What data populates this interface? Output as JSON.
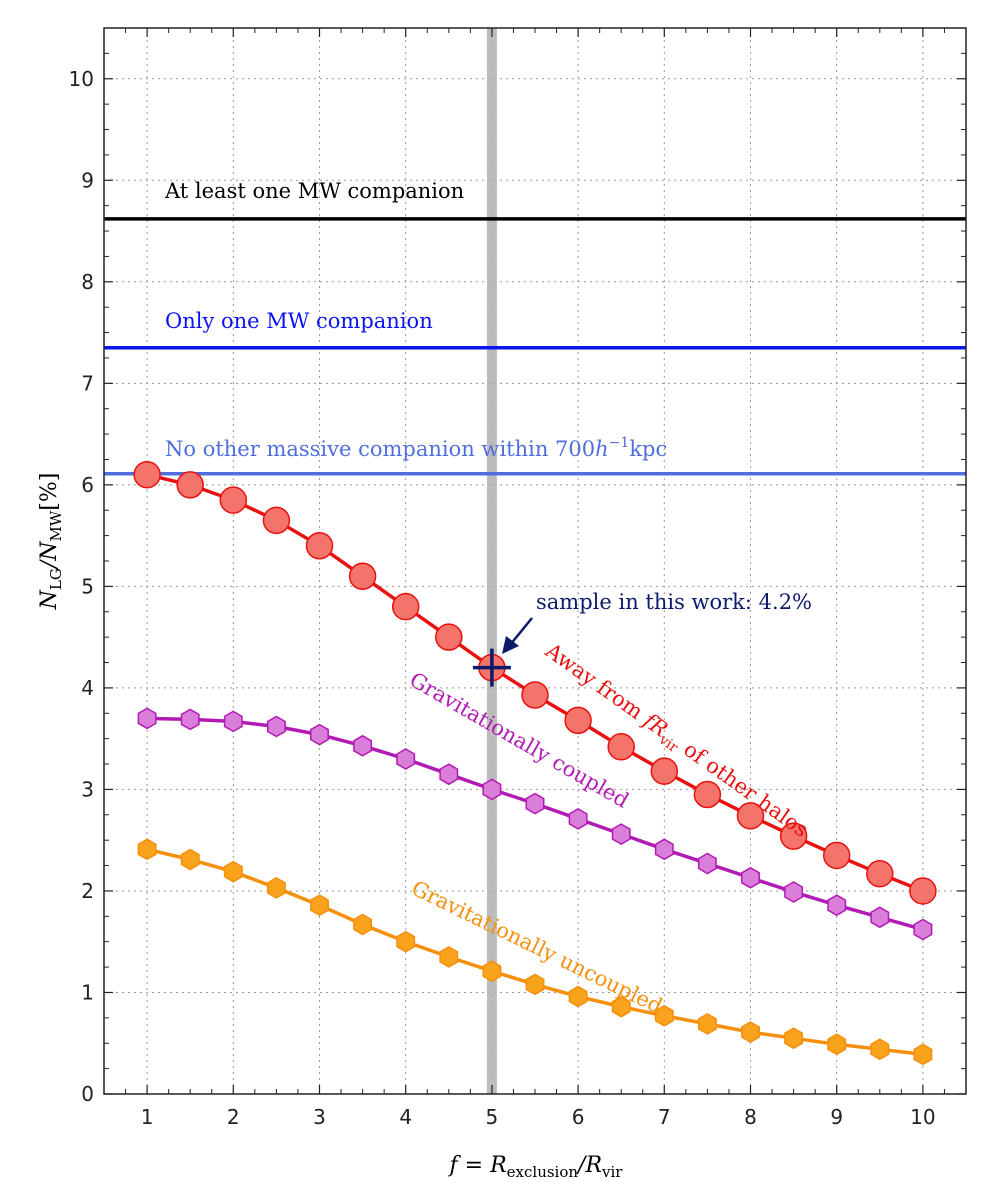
{
  "chart_data": {
    "type": "line",
    "xlabel": "f = R",
    "xlabel_sub1": "exclusion",
    "xlabel_mid": "/R",
    "xlabel_sub2": "vir",
    "ylabel": "N",
    "ylabel_sub1": "LG",
    "ylabel_mid": "/N",
    "ylabel_sub2": "MW",
    "ylabel_unit": "[%]",
    "xlim": [
      0.5,
      10.5
    ],
    "ylim": [
      0,
      10.5
    ],
    "x_ticks": [
      1,
      2,
      3,
      4,
      5,
      6,
      7,
      8,
      9,
      10
    ],
    "x_tick_labels": [
      "1",
      "2",
      "3",
      "4",
      "5",
      "6",
      "7",
      "8",
      "9",
      "10"
    ],
    "y_ticks": [
      0,
      1,
      2,
      3,
      4,
      5,
      6,
      7,
      8,
      9,
      10
    ],
    "y_tick_labels": [
      "0",
      "1",
      "2",
      "3",
      "4",
      "5",
      "6",
      "7",
      "8",
      "9",
      "10"
    ],
    "grid": true,
    "x": [
      1,
      1.5,
      2,
      2.5,
      3,
      3.5,
      4,
      4.5,
      5,
      5.5,
      6,
      6.5,
      7,
      7.5,
      8,
      8.5,
      9,
      9.5,
      10
    ],
    "series": [
      {
        "name": "Away from fR_vir of other halos",
        "color": "#e8110f",
        "fill": "#f4736b",
        "marker": "circle",
        "values": [
          6.1,
          6.0,
          5.85,
          5.65,
          5.4,
          5.1,
          4.8,
          4.5,
          4.2,
          3.93,
          3.68,
          3.42,
          3.18,
          2.95,
          2.74,
          2.54,
          2.35,
          2.17,
          2.0
        ]
      },
      {
        "name": "Gravitationally coupled",
        "color": "#b21ab5",
        "fill": "#d97fda",
        "marker": "hexagon",
        "values": [
          3.7,
          3.69,
          3.67,
          3.62,
          3.54,
          3.43,
          3.3,
          3.15,
          3.0,
          2.86,
          2.71,
          2.56,
          2.41,
          2.27,
          2.13,
          1.99,
          1.86,
          1.74,
          1.62
        ]
      },
      {
        "name": "Gravitationally uncoupled",
        "color": "#f58f0c",
        "fill": "#f9a21c",
        "marker": "hexagon",
        "values": [
          2.41,
          2.31,
          2.19,
          2.03,
          1.86,
          1.67,
          1.5,
          1.35,
          1.21,
          1.08,
          0.96,
          0.86,
          0.77,
          0.69,
          0.61,
          0.55,
          0.49,
          0.44,
          0.39
        ]
      }
    ],
    "hlines": [
      {
        "y": 8.62,
        "color": "#000000",
        "label": "At least one MW companion"
      },
      {
        "y": 7.35,
        "color": "#0a14ee",
        "label": "Only one MW companion"
      },
      {
        "y": 6.11,
        "color": "#4f6ede",
        "label_pre": "No other massive companion within 700",
        "label_h": "h",
        "label_exp": "−1",
        "label_post": "kpc"
      }
    ],
    "vline": {
      "x": 5,
      "color": "#b0b0b0"
    },
    "highlight": {
      "x": 5,
      "y": 4.2,
      "color": "#0b1a6b",
      "label": "sample in this work: 4.2%"
    },
    "series_labels": {
      "red": {
        "pre": "Away from ",
        "f": "f",
        "R": "R",
        "sub": "vir",
        "post": "  of other halos"
      },
      "purple": "Gravitationally coupled",
      "orange": "Gravitationally uncoupled"
    }
  }
}
